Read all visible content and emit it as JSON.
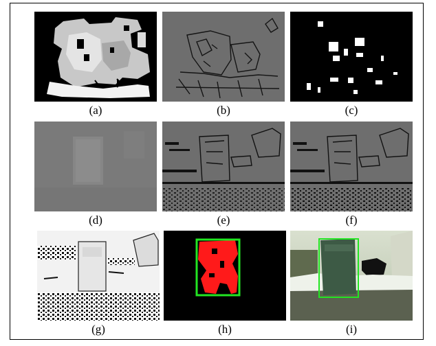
{
  "figure": {
    "panels": [
      {
        "id": "a",
        "caption": "(a)",
        "content": "depth-map"
      },
      {
        "id": "b",
        "caption": "(b)",
        "content": "edge-map"
      },
      {
        "id": "c",
        "caption": "(c)",
        "content": "binary-mask"
      },
      {
        "id": "d",
        "caption": "(d)",
        "content": "gray-depth"
      },
      {
        "id": "e",
        "caption": "(e)",
        "content": "edge-map"
      },
      {
        "id": "f",
        "caption": "(f)",
        "content": "edge-map"
      },
      {
        "id": "g",
        "caption": "(g)",
        "content": "inverted-edge-map"
      },
      {
        "id": "h",
        "caption": "(h)",
        "content": "segmentation-mask"
      },
      {
        "id": "i",
        "caption": "(i)",
        "content": "detection-result"
      }
    ],
    "colors": {
      "mask_red": "#ff1a1a",
      "box_green": "#22e622",
      "edge_gray": "#6e6e6e",
      "depth_gray": "#7a7a7a"
    }
  }
}
